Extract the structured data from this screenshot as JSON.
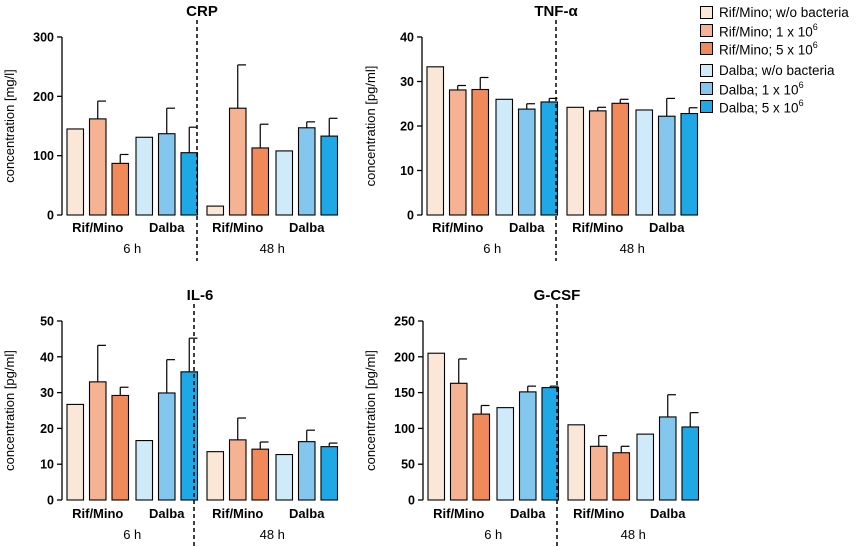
{
  "figure": {
    "series_colors": [
      "#fbe7d7",
      "#f5b394",
      "#f08a5b",
      "#cfeaf9",
      "#83c6ee",
      "#1ea8e6"
    ],
    "bar_outline_color": "#000000"
  },
  "legend": {
    "items": [
      {
        "name": "Rif/Mino; w/o bacteria",
        "base": "Rif/Mino; w/o bacteria",
        "sup": "",
        "color": "#fbe7d7"
      },
      {
        "name": "Rif/Mino; 1 x 10^6",
        "base": "Rif/Mino; 1 x 10",
        "sup": "6",
        "color": "#f5b394"
      },
      {
        "name": "Rif/Mino; 5 x 10^6",
        "base": "Rif/Mino; 5 x 10",
        "sup": "6",
        "color": "#f08a5b"
      },
      {
        "name": "Dalba; w/o bacteria",
        "base": "Dalba; w/o bacteria",
        "sup": "",
        "color": "#cfeaf9"
      },
      {
        "name": "Dalba; 1 x 10^6",
        "base": "Dalba; 1 x 10",
        "sup": "6",
        "color": "#83c6ee"
      },
      {
        "name": "Dalba; 5 x 10^6",
        "base": "Dalba; 5 x 10",
        "sup": "6",
        "color": "#1ea8e6"
      }
    ]
  },
  "chart_data": [
    {
      "type": "bar",
      "title": "CRP",
      "ylabel": "concentration [mg/l]",
      "ylim": [
        0,
        300
      ],
      "yticks": [
        0,
        100,
        200,
        300
      ],
      "groups": [
        "Rif/Mino",
        "Dalba",
        "Rif/Mino",
        "Dalba"
      ],
      "timepoints": [
        "6 h",
        "48 h"
      ],
      "series": [
        {
          "name": "Rif/Mino; w/o bacteria",
          "values": [
            145,
            15
          ],
          "errors": [
            0,
            0
          ]
        },
        {
          "name": "Rif/Mino; 1 x 10^6",
          "values": [
            162,
            180
          ],
          "errors": [
            30,
            73
          ]
        },
        {
          "name": "Rif/Mino; 5 x 10^6",
          "values": [
            87,
            113
          ],
          "errors": [
            15,
            40
          ]
        },
        {
          "name": "Dalba; w/o bacteria",
          "values": [
            131,
            108
          ],
          "errors": [
            0,
            0
          ]
        },
        {
          "name": "Dalba; 1 x 10^6",
          "values": [
            137,
            147
          ],
          "errors": [
            43,
            10
          ]
        },
        {
          "name": "Dalba; 5 x 10^6",
          "values": [
            105,
            133
          ],
          "errors": [
            43,
            30
          ]
        }
      ]
    },
    {
      "type": "bar",
      "title": "TNF-α",
      "ylabel": "concentration [pg/ml]",
      "ylim": [
        0,
        40
      ],
      "yticks": [
        0,
        10,
        20,
        30,
        40
      ],
      "groups": [
        "Rif/Mino",
        "Dalba",
        "Rif/Mino",
        "Dalba"
      ],
      "timepoints": [
        "6 h",
        "48 h"
      ],
      "series": [
        {
          "name": "Rif/Mino; w/o bacteria",
          "values": [
            33.3,
            24.2
          ],
          "errors": [
            0,
            0
          ]
        },
        {
          "name": "Rif/Mino; 1 x 10^6",
          "values": [
            28.1,
            23.4
          ],
          "errors": [
            1.0,
            0.8
          ]
        },
        {
          "name": "Rif/Mino; 5 x 10^6",
          "values": [
            28.2,
            25.1
          ],
          "errors": [
            2.7,
            0.9
          ]
        },
        {
          "name": "Dalba; w/o bacteria",
          "values": [
            26.0,
            23.6
          ],
          "errors": [
            0,
            0
          ]
        },
        {
          "name": "Dalba; 1 x 10^6",
          "values": [
            23.8,
            22.2
          ],
          "errors": [
            1.2,
            4.0
          ]
        },
        {
          "name": "Dalba; 5 x 10^6",
          "values": [
            25.4,
            22.8
          ],
          "errors": [
            0.8,
            1.3
          ]
        }
      ]
    },
    {
      "type": "bar",
      "title": "IL-6",
      "ylabel": "concentration [pg/ml]",
      "ylim": [
        0,
        50
      ],
      "yticks": [
        0,
        10,
        20,
        30,
        40,
        50
      ],
      "groups": [
        "Rif/Mino",
        "Dalba",
        "Rif/Mino",
        "Dalba"
      ],
      "timepoints": [
        "6 h",
        "48 h"
      ],
      "series": [
        {
          "name": "Rif/Mino; w/o bacteria",
          "values": [
            26.7,
            13.5
          ],
          "errors": [
            0,
            0
          ]
        },
        {
          "name": "Rif/Mino; 1 x 10^6",
          "values": [
            33.0,
            16.8
          ],
          "errors": [
            10.2,
            6.1
          ]
        },
        {
          "name": "Rif/Mino; 5 x 10^6",
          "values": [
            29.2,
            14.2
          ],
          "errors": [
            2.3,
            2.0
          ]
        },
        {
          "name": "Dalba; w/o bacteria",
          "values": [
            16.6,
            12.7
          ],
          "errors": [
            0,
            0
          ]
        },
        {
          "name": "Dalba; 1 x 10^6",
          "values": [
            29.9,
            16.3
          ],
          "errors": [
            9.3,
            3.2
          ]
        },
        {
          "name": "Dalba; 5 x 10^6",
          "values": [
            35.8,
            14.9
          ],
          "errors": [
            9.4,
            1.0
          ]
        }
      ]
    },
    {
      "type": "bar",
      "title": "G-CSF",
      "ylabel": "concentration [pg/ml]",
      "ylim": [
        0,
        250
      ],
      "yticks": [
        0,
        50,
        100,
        150,
        200,
        250
      ],
      "groups": [
        "Rif/Mino",
        "Dalba",
        "Rif/Mino",
        "Dalba"
      ],
      "timepoints": [
        "6 h",
        "48 h"
      ],
      "series": [
        {
          "name": "Rif/Mino; w/o bacteria",
          "values": [
            205,
            105
          ],
          "errors": [
            0,
            0
          ]
        },
        {
          "name": "Rif/Mino; 1 x 10^6",
          "values": [
            163,
            75
          ],
          "errors": [
            34,
            15
          ]
        },
        {
          "name": "Rif/Mino; 5 x 10^6",
          "values": [
            120,
            66
          ],
          "errors": [
            12,
            9
          ]
        },
        {
          "name": "Dalba; w/o bacteria",
          "values": [
            129,
            92
          ],
          "errors": [
            0,
            0
          ]
        },
        {
          "name": "Dalba; 1 x 10^6",
          "values": [
            151,
            116
          ],
          "errors": [
            8,
            31
          ]
        },
        {
          "name": "Dalba; 5 x 10^6",
          "values": [
            157,
            102
          ],
          "errors": [
            2,
            20
          ]
        }
      ]
    }
  ]
}
